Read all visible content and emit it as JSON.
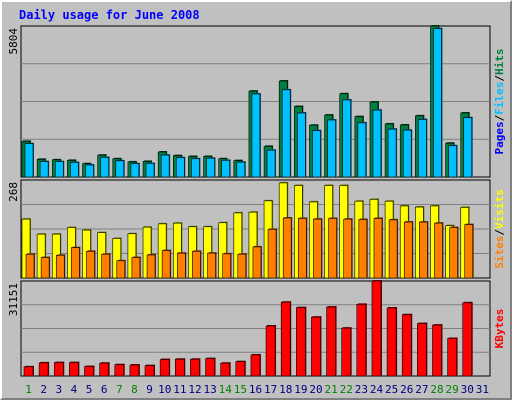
{
  "chart_data": [
    {
      "type": "bar",
      "title": "Daily usage for June 2008",
      "panel": "top",
      "ymax_label": "5804",
      "ylim": [
        0,
        5804
      ],
      "categories": [
        "1",
        "2",
        "3",
        "4",
        "5",
        "6",
        "7",
        "8",
        "9",
        "10",
        "11",
        "12",
        "13",
        "14",
        "15",
        "16",
        "17",
        "18",
        "19",
        "20",
        "21",
        "22",
        "23",
        "24",
        "25",
        "26",
        "27",
        "28",
        "29",
        "30",
        "31"
      ],
      "legend": [
        "Pages",
        "Files",
        "Hits"
      ],
      "series": [
        {
          "name": "Hits",
          "color": "#008040",
          "values": [
            1370,
            680,
            660,
            640,
            510,
            840,
            700,
            580,
            600,
            960,
            820,
            790,
            790,
            700,
            630,
            3300,
            1180,
            3690,
            2710,
            1990,
            2380,
            3200,
            2320,
            2880,
            2040,
            2000,
            2350,
            5804,
            1300,
            2460,
            0
          ]
        },
        {
          "name": "Files",
          "color": "#00c0ff",
          "values": [
            1280,
            590,
            590,
            560,
            460,
            750,
            620,
            510,
            520,
            840,
            740,
            700,
            720,
            640,
            570,
            3190,
            1030,
            3350,
            2460,
            1780,
            2190,
            2960,
            2080,
            2570,
            1840,
            1800,
            2210,
            5700,
            1200,
            2280,
            0
          ]
        },
        {
          "name": "Pages",
          "color": "#0000ff",
          "values": [
            60,
            30,
            30,
            30,
            25,
            40,
            35,
            30,
            30,
            45,
            40,
            40,
            40,
            35,
            30,
            70,
            55,
            90,
            80,
            70,
            75,
            85,
            75,
            80,
            70,
            70,
            75,
            110,
            50,
            75,
            0
          ]
        }
      ]
    },
    {
      "type": "bar",
      "panel": "middle",
      "ymax_label": "268",
      "ylim": [
        0,
        268
      ],
      "categories": [
        "1",
        "2",
        "3",
        "4",
        "5",
        "6",
        "7",
        "8",
        "9",
        "10",
        "11",
        "12",
        "13",
        "14",
        "15",
        "16",
        "17",
        "18",
        "19",
        "20",
        "21",
        "22",
        "23",
        "24",
        "25",
        "26",
        "27",
        "28",
        "29",
        "30",
        "31"
      ],
      "legend": [
        "Sites",
        "Visits"
      ],
      "series": [
        {
          "name": "Visits",
          "color": "#ffff00",
          "values": [
            161,
            120,
            120,
            138,
            131,
            124,
            108,
            121,
            139,
            148,
            150,
            140,
            140,
            151,
            178,
            180,
            211,
            260,
            253,
            208,
            253,
            253,
            210,
            215,
            210,
            197,
            194,
            197,
            143,
            193,
            0
          ]
        },
        {
          "name": "Sites",
          "color": "#ff8000",
          "values": [
            65,
            56,
            62,
            83,
            73,
            65,
            47,
            56,
            63,
            75,
            68,
            73,
            68,
            66,
            65,
            85,
            133,
            164,
            163,
            161,
            163,
            161,
            160,
            163,
            159,
            153,
            153,
            150,
            138,
            146,
            0
          ]
        }
      ]
    },
    {
      "type": "bar",
      "panel": "bottom",
      "ymax_label": "31151",
      "ylim": [
        0,
        31151
      ],
      "categories": [
        "1",
        "2",
        "3",
        "4",
        "5",
        "6",
        "7",
        "8",
        "9",
        "10",
        "11",
        "12",
        "13",
        "14",
        "15",
        "16",
        "17",
        "18",
        "19",
        "20",
        "21",
        "22",
        "23",
        "24",
        "25",
        "26",
        "27",
        "28",
        "29",
        "30",
        "31"
      ],
      "legend": [
        "KBytes"
      ],
      "series": [
        {
          "name": "KBytes",
          "color": "#ff0000",
          "values": [
            3000,
            4300,
            4400,
            4400,
            3100,
            4200,
            3700,
            3600,
            3400,
            5400,
            5500,
            5500,
            5700,
            4200,
            4700,
            6900,
            16400,
            24200,
            22400,
            19300,
            22600,
            15700,
            23500,
            31151,
            22300,
            20100,
            17200,
            16700,
            12300,
            24000,
            0
          ]
        }
      ]
    }
  ],
  "x_label_colors": {
    "weekday": "#000080",
    "weekend": "#008000"
  },
  "weekend_days": [
    "1",
    "7",
    "8",
    "14",
    "15",
    "21",
    "22",
    "28",
    "29"
  ],
  "legend_colors": {
    "Pages": "#0000ff",
    "Files": "#00c0ff",
    "Hits": "#008040",
    "Visits": "#ffff00",
    "Sites": "#ff8000",
    "KBytes": "#ff0000"
  },
  "separator": "/"
}
